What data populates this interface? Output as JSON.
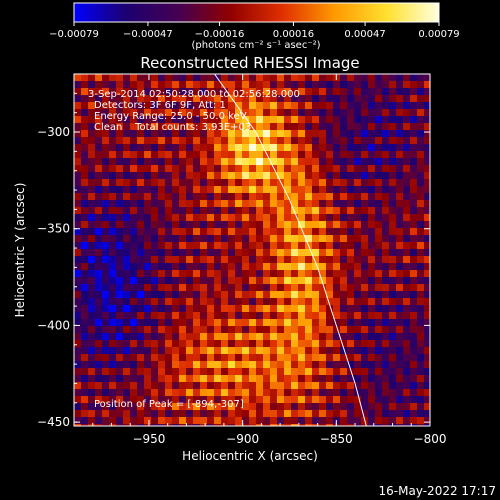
{
  "chart_data": {
    "type": "heatmap",
    "title": "Reconstructed RHESSI Image",
    "xlabel": "Heliocentric X (arcsec)",
    "ylabel": "Heliocentric Y (arcsec)",
    "xlim": [
      -990,
      -800
    ],
    "ylim": [
      -452,
      -270
    ],
    "xticks": [
      {
        "value": -950,
        "label": "-950"
      },
      {
        "value": -900,
        "label": "-900"
      },
      {
        "value": -850,
        "label": "-850"
      },
      {
        "value": -800,
        "label": "-800"
      }
    ],
    "yticks": [
      {
        "value": -300,
        "label": "-300"
      },
      {
        "value": -350,
        "label": "-350"
      },
      {
        "value": -400,
        "label": "-400"
      },
      {
        "value": -450,
        "label": "-450"
      }
    ],
    "colorbar": {
      "range": [
        -0.00079,
        0.00079
      ],
      "ticks": [
        {
          "value": -0.00079,
          "label": "-0.00079"
        },
        {
          "value": -0.00047,
          "label": "-0.00047"
        },
        {
          "value": -0.00016,
          "label": "-0.00016"
        },
        {
          "value": 0.00016,
          "label": "0.00016"
        },
        {
          "value": 0.00047,
          "label": "0.00047"
        },
        {
          "value": 0.00079,
          "label": "0.00079"
        }
      ],
      "units_label": "(photons cm⁻² s⁻¹ asec⁻²)",
      "colormap": [
        "#0000ff",
        "#1c0070",
        "#450052",
        "#900000",
        "#e03000",
        "#ff9a00",
        "#ffe030",
        "#ffffe0"
      ]
    },
    "annotations": [
      "3-Sep-2014 02:50:28.000 to 02:56:28.000",
      "Detectors: 3F 6F 9F, Att: 1",
      "Energy Range: 25.0 - 50.0 keV",
      "Clean    Total counts: 3.93E+03",
      "Position of Peak = [-894,-307]"
    ],
    "limb_curve": [
      [
        -915,
        -270
      ],
      [
        -893,
        -300
      ],
      [
        -875,
        -335
      ],
      [
        -860,
        -370
      ],
      [
        -850,
        -400
      ],
      [
        -840,
        -430
      ],
      [
        -834,
        -452
      ]
    ],
    "peak": [
      -894,
      -307
    ]
  },
  "footer": {
    "date": "16-May-2022 17:17"
  }
}
